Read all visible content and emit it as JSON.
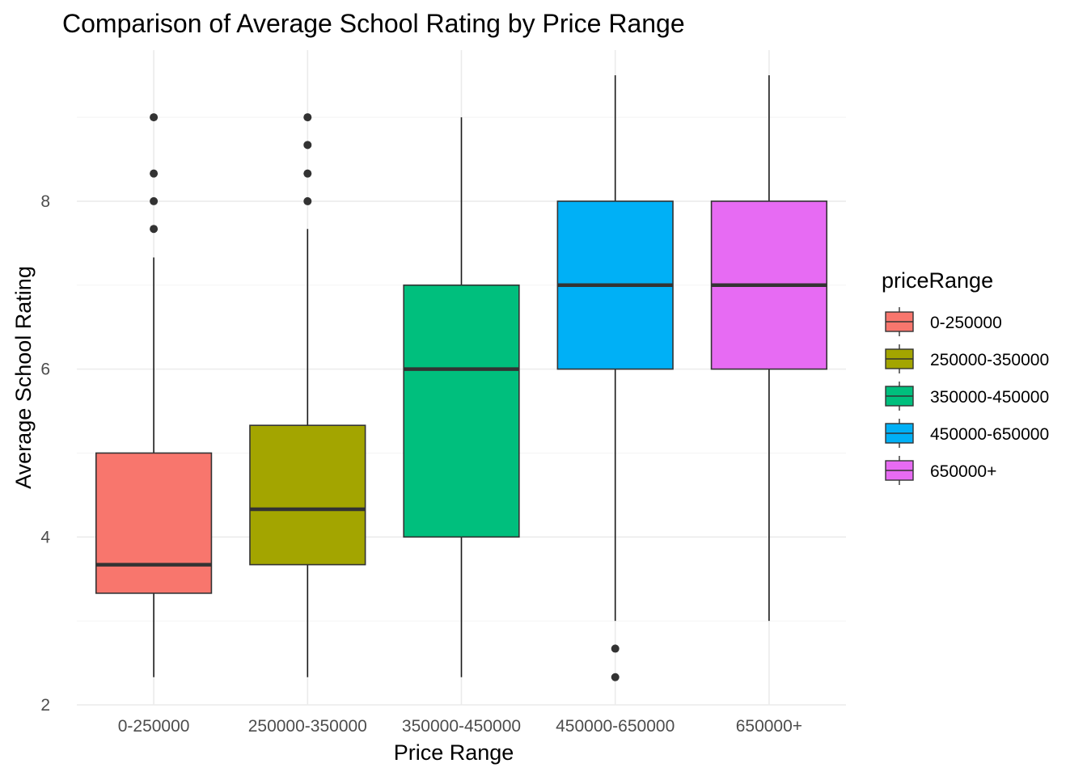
{
  "chart_data": {
    "type": "boxplot",
    "title": "Comparison of Average School Rating by Price Range",
    "xlabel": "Price Range",
    "ylabel": "Average School Rating",
    "ylim": [
      2,
      9.8
    ],
    "yticks": [
      2,
      4,
      6,
      8
    ],
    "grid": true,
    "legend": {
      "title": "priceRange",
      "position": "right"
    },
    "categories": [
      "0-250000",
      "250000-350000",
      "350000-450000",
      "450000-650000",
      "650000+"
    ],
    "series": [
      {
        "name": "0-250000",
        "color": "#F8766D",
        "whisker_low": 2.33,
        "q1": 3.33,
        "median": 3.67,
        "q3": 5.0,
        "whisker_high": 7.33,
        "outliers": [
          7.67,
          8.0,
          8.33,
          9.0
        ]
      },
      {
        "name": "250000-350000",
        "color": "#A3A500",
        "whisker_low": 2.33,
        "q1": 3.67,
        "median": 4.33,
        "q3": 5.33,
        "whisker_high": 7.67,
        "outliers": [
          8.0,
          8.33,
          8.67,
          9.0
        ]
      },
      {
        "name": "350000-450000",
        "color": "#00BF7D",
        "whisker_low": 2.33,
        "q1": 4.0,
        "median": 6.0,
        "q3": 7.0,
        "whisker_high": 9.0,
        "outliers": []
      },
      {
        "name": "450000-650000",
        "color": "#00B0F6",
        "whisker_low": 3.0,
        "q1": 6.0,
        "median": 7.0,
        "q3": 8.0,
        "whisker_high": 9.5,
        "outliers": [
          2.33,
          2.67
        ]
      },
      {
        "name": "650000+",
        "color": "#E76BF3",
        "whisker_low": 3.0,
        "q1": 6.0,
        "median": 7.0,
        "q3": 8.0,
        "whisker_high": 9.5,
        "outliers": []
      }
    ]
  }
}
